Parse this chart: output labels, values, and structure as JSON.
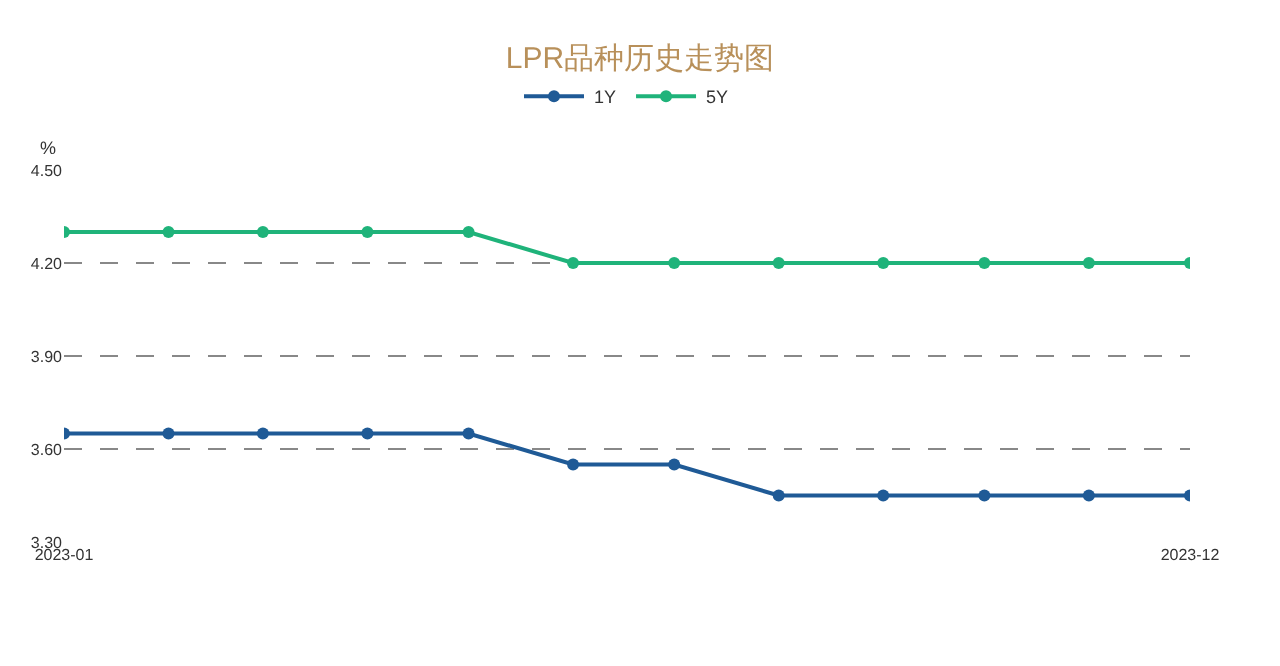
{
  "chart_data": {
    "type": "line",
    "title": "LPR品种历史走势图",
    "ylabel": "%",
    "x": [
      "2023-01",
      "2023-02",
      "2023-03",
      "2023-04",
      "2023-05",
      "2023-06",
      "2023-07",
      "2023-08",
      "2023-09",
      "2023-10",
      "2023-11",
      "2023-12"
    ],
    "series": [
      {
        "name": "1Y",
        "color": "#1f5a96",
        "values": [
          3.65,
          3.65,
          3.65,
          3.65,
          3.65,
          3.55,
          3.55,
          3.45,
          3.45,
          3.45,
          3.45,
          3.45
        ]
      },
      {
        "name": "5Y",
        "color": "#1fb37a",
        "values": [
          4.3,
          4.3,
          4.3,
          4.3,
          4.3,
          4.2,
          4.2,
          4.2,
          4.2,
          4.2,
          4.2,
          4.2
        ]
      }
    ],
    "xlim": [
      "2023-01",
      "2023-12"
    ],
    "xticks": [
      "2023-01",
      "2023-12"
    ],
    "ylim": [
      3.3,
      4.5
    ],
    "yticks": [
      {
        "value": 3.3,
        "label": "3.30"
      },
      {
        "value": 3.6,
        "label": "3.60"
      },
      {
        "value": 3.9,
        "label": "3.90"
      },
      {
        "value": 4.2,
        "label": "4.20"
      },
      {
        "value": 4.5,
        "label": "4.50"
      }
    ],
    "grid": "y",
    "legend": "top",
    "marker": "circle",
    "line_style": "solid"
  }
}
